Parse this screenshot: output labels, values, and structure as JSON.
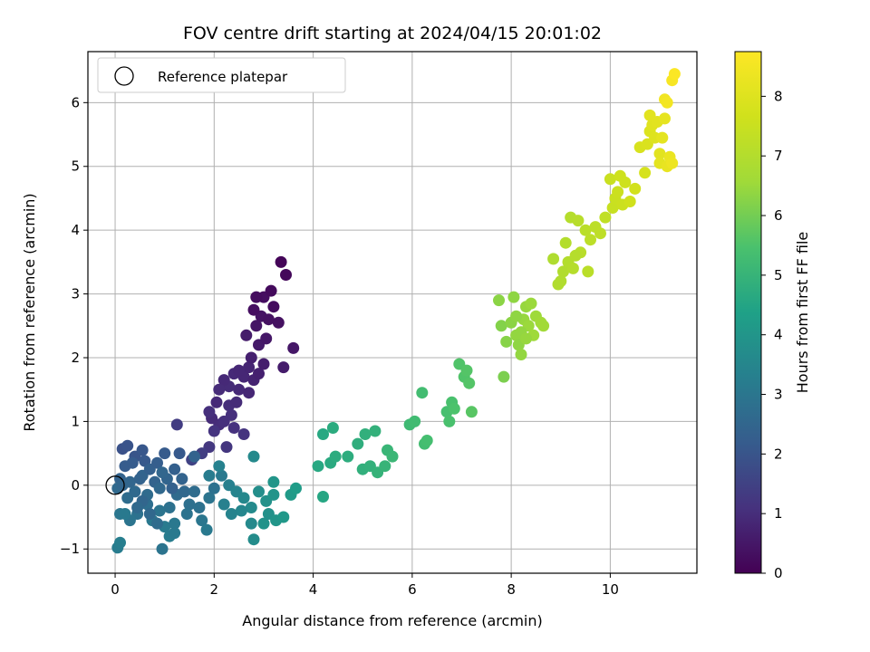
{
  "chart_data": {
    "type": "scatter",
    "title": "FOV centre drift starting at 2024/04/15 20:01:02",
    "xlabel": "Angular distance from reference (arcmin)",
    "ylabel": "Rotation from reference (arcmin)",
    "xlim": [
      -0.55,
      11.75
    ],
    "ylim": [
      -1.38,
      6.8
    ],
    "x_ticks": [
      0,
      2,
      4,
      6,
      8,
      10
    ],
    "y_ticks": [
      -1,
      0,
      1,
      2,
      3,
      4,
      5,
      6
    ],
    "x_tick_labels": [
      "0",
      "2",
      "4",
      "6",
      "8",
      "10"
    ],
    "y_tick_labels": [
      "−1",
      "0",
      "1",
      "2",
      "3",
      "4",
      "5",
      "6"
    ],
    "grid": true,
    "colormap": "viridis",
    "colorbar": {
      "label": "Hours from first FF file",
      "range": [
        0,
        8.75
      ],
      "ticks": [
        0,
        1,
        2,
        3,
        4,
        5,
        6,
        7,
        8
      ],
      "tick_labels": [
        "0",
        "1",
        "2",
        "3",
        "4",
        "5",
        "6",
        "7",
        "8"
      ]
    },
    "legend": {
      "position": "top-left",
      "label": "Reference platepar"
    },
    "reference_point": {
      "x": 0,
      "y": 0
    },
    "series_columns": [
      "x",
      "y",
      "hours"
    ],
    "points": [
      [
        2.1,
        0.95,
        1.0
      ],
      [
        2.2,
        1.0,
        1.05
      ],
      [
        1.95,
        1.05,
        0.95
      ],
      [
        2.3,
        1.25,
        1.0
      ],
      [
        2.05,
        1.3,
        0.9
      ],
      [
        2.5,
        1.5,
        0.9
      ],
      [
        2.3,
        1.55,
        0.95
      ],
      [
        2.6,
        1.7,
        0.85
      ],
      [
        2.4,
        1.75,
        0.9
      ],
      [
        2.7,
        1.85,
        0.8
      ],
      [
        2.5,
        1.8,
        0.85
      ],
      [
        2.8,
        1.65,
        0.75
      ],
      [
        2.9,
        1.75,
        0.7
      ],
      [
        2.75,
        2.0,
        0.7
      ],
      [
        3.0,
        1.9,
        0.65
      ],
      [
        2.65,
        2.35,
        0.6
      ],
      [
        2.9,
        2.2,
        0.55
      ],
      [
        3.05,
        2.3,
        0.5
      ],
      [
        2.85,
        2.5,
        0.45
      ],
      [
        2.95,
        2.65,
        0.4
      ],
      [
        3.1,
        2.6,
        0.35
      ],
      [
        2.8,
        2.75,
        0.3
      ],
      [
        3.2,
        2.8,
        0.25
      ],
      [
        3.0,
        2.95,
        0.3
      ],
      [
        3.15,
        3.05,
        0.2
      ],
      [
        2.85,
        2.95,
        0.25
      ],
      [
        3.3,
        2.55,
        0.35
      ],
      [
        3.35,
        3.5,
        0.1
      ],
      [
        3.45,
        3.3,
        0.15
      ],
      [
        3.4,
        1.85,
        0.6
      ],
      [
        3.6,
        2.15,
        0.5
      ],
      [
        2.2,
        1.65,
        0.9
      ],
      [
        2.7,
        1.45,
        0.85
      ],
      [
        2.45,
        1.3,
        0.95
      ],
      [
        2.1,
        1.5,
        0.95
      ],
      [
        1.9,
        1.15,
        1.05
      ],
      [
        2.4,
        0.9,
        1.1
      ],
      [
        2.6,
        0.8,
        1.15
      ],
      [
        2.25,
        0.6,
        1.2
      ],
      [
        1.9,
        0.6,
        1.25
      ],
      [
        1.75,
        0.5,
        1.4
      ],
      [
        1.55,
        0.4,
        1.5
      ],
      [
        1.25,
        0.95,
        1.35
      ],
      [
        2.0,
        0.85,
        1.15
      ],
      [
        2.35,
        1.1,
        1.05
      ],
      [
        0.15,
        0.57,
        1.9
      ],
      [
        0.25,
        0.62,
        1.95
      ],
      [
        0.4,
        0.45,
        2.0
      ],
      [
        0.55,
        0.55,
        2.05
      ],
      [
        0.6,
        0.38,
        2.1
      ],
      [
        0.2,
        0.3,
        2.2
      ],
      [
        0.1,
        0.1,
        2.4
      ],
      [
        0.3,
        0.05,
        2.5
      ],
      [
        0.05,
        -0.05,
        2.6
      ],
      [
        0.25,
        -0.2,
        2.7
      ],
      [
        0.4,
        -0.1,
        2.6
      ],
      [
        0.55,
        0.15,
        2.45
      ],
      [
        0.7,
        0.25,
        2.3
      ],
      [
        0.8,
        0.05,
        2.4
      ],
      [
        0.9,
        -0.05,
        2.55
      ],
      [
        0.65,
        -0.3,
        2.75
      ],
      [
        0.45,
        -0.45,
        2.85
      ],
      [
        0.3,
        -0.55,
        2.95
      ],
      [
        0.1,
        -0.45,
        3.0
      ],
      [
        0.05,
        -0.98,
        3.2
      ],
      [
        0.1,
        -0.9,
        3.25
      ],
      [
        0.2,
        -0.45,
        3.1
      ],
      [
        0.75,
        -0.55,
        3.05
      ],
      [
        0.9,
        -0.4,
        2.95
      ],
      [
        1.0,
        -0.65,
        3.15
      ],
      [
        1.1,
        -0.8,
        3.2
      ],
      [
        1.2,
        -0.6,
        3.05
      ],
      [
        1.1,
        -0.35,
        2.85
      ],
      [
        1.25,
        -0.15,
        2.65
      ],
      [
        1.05,
        0.1,
        2.45
      ],
      [
        1.2,
        0.25,
        2.3
      ],
      [
        1.35,
        0.1,
        2.4
      ],
      [
        1.0,
        0.5,
        2.15
      ],
      [
        0.85,
        0.35,
        2.25
      ],
      [
        0.5,
        0.1,
        2.4
      ],
      [
        0.35,
        0.35,
        2.2
      ],
      [
        0.15,
        0.0,
        2.5
      ],
      [
        0.65,
        -0.15,
        2.65
      ],
      [
        0.95,
        0.2,
        2.5
      ],
      [
        1.3,
        0.5,
        2.1
      ],
      [
        1.4,
        -0.1,
        2.55
      ],
      [
        1.5,
        -0.3,
        2.8
      ],
      [
        1.6,
        -0.1,
        2.7
      ],
      [
        1.7,
        -0.35,
        2.85
      ],
      [
        1.75,
        -0.55,
        3.0
      ],
      [
        1.85,
        -0.7,
        3.1
      ],
      [
        1.9,
        -0.2,
        2.95
      ],
      [
        2.0,
        -0.05,
        2.85
      ],
      [
        2.15,
        0.15,
        3.1
      ],
      [
        2.3,
        0.0,
        3.3
      ],
      [
        2.45,
        -0.1,
        3.45
      ],
      [
        2.6,
        -0.2,
        3.55
      ],
      [
        2.75,
        -0.35,
        3.65
      ],
      [
        2.9,
        -0.1,
        3.75
      ],
      [
        3.05,
        -0.25,
        3.85
      ],
      [
        3.2,
        -0.15,
        3.95
      ],
      [
        3.1,
        -0.45,
        3.85
      ],
      [
        3.25,
        -0.55,
        4.0
      ],
      [
        3.0,
        -0.6,
        3.9
      ],
      [
        2.8,
        -0.85,
        3.7
      ],
      [
        2.75,
        -0.6,
        3.6
      ],
      [
        2.55,
        -0.4,
        3.5
      ],
      [
        2.35,
        -0.45,
        3.4
      ],
      [
        2.2,
        -0.3,
        3.3
      ],
      [
        1.9,
        0.15,
        3.2
      ],
      [
        2.1,
        0.3,
        3.35
      ],
      [
        2.8,
        0.45,
        3.6
      ],
      [
        3.2,
        0.05,
        4.0
      ],
      [
        3.4,
        -0.5,
        4.1
      ],
      [
        3.55,
        -0.15,
        4.15
      ],
      [
        3.65,
        -0.05,
        4.2
      ],
      [
        0.95,
        -1.0,
        2.95
      ],
      [
        1.2,
        -0.75,
        3.1
      ],
      [
        1.45,
        -0.45,
        2.9
      ],
      [
        1.6,
        0.45,
        2.4
      ],
      [
        0.7,
        -0.45,
        2.55
      ],
      [
        0.55,
        -0.25,
        2.5
      ],
      [
        0.85,
        -0.6,
        2.7
      ],
      [
        1.15,
        -0.05,
        2.35
      ],
      [
        0.45,
        -0.35,
        2.6
      ],
      [
        4.2,
        0.8,
        4.6
      ],
      [
        4.4,
        0.9,
        4.7
      ],
      [
        4.1,
        0.3,
        4.6
      ],
      [
        4.35,
        0.35,
        4.65
      ],
      [
        4.45,
        0.45,
        4.7
      ],
      [
        4.2,
        -0.18,
        4.55
      ],
      [
        4.7,
        0.45,
        4.75
      ],
      [
        4.9,
        0.65,
        4.8
      ],
      [
        5.05,
        0.8,
        4.85
      ],
      [
        5.25,
        0.85,
        4.9
      ],
      [
        5.0,
        0.25,
        4.85
      ],
      [
        5.15,
        0.3,
        4.9
      ],
      [
        5.3,
        0.2,
        4.95
      ],
      [
        5.45,
        0.3,
        5.0
      ],
      [
        5.5,
        0.55,
        5.05
      ],
      [
        5.6,
        0.45,
        5.1
      ],
      [
        5.95,
        0.95,
        5.2
      ],
      [
        6.05,
        1.0,
        5.25
      ],
      [
        6.2,
        1.45,
        5.3
      ],
      [
        6.25,
        0.65,
        5.3
      ],
      [
        6.3,
        0.7,
        5.35
      ],
      [
        6.7,
        1.15,
        5.4
      ],
      [
        6.8,
        1.3,
        5.45
      ],
      [
        6.85,
        1.2,
        5.5
      ],
      [
        6.95,
        1.9,
        5.55
      ],
      [
        7.05,
        1.7,
        5.55
      ],
      [
        7.1,
        1.8,
        5.6
      ],
      [
        7.15,
        1.6,
        5.6
      ],
      [
        7.2,
        1.15,
        5.65
      ],
      [
        6.75,
        1.0,
        5.45
      ],
      [
        7.75,
        2.9,
        6.3
      ],
      [
        7.8,
        2.5,
        6.2
      ],
      [
        7.9,
        2.25,
        6.25
      ],
      [
        7.85,
        1.7,
        6.1
      ],
      [
        8.0,
        2.55,
        6.3
      ],
      [
        8.05,
        2.95,
        6.35
      ],
      [
        8.1,
        2.35,
        6.4
      ],
      [
        8.15,
        2.2,
        6.35
      ],
      [
        8.2,
        2.05,
        6.4
      ],
      [
        8.25,
        2.6,
        6.45
      ],
      [
        8.3,
        2.8,
        6.45
      ],
      [
        8.35,
        2.5,
        6.5
      ],
      [
        8.4,
        2.85,
        6.5
      ],
      [
        8.45,
        2.35,
        6.55
      ],
      [
        8.5,
        2.65,
        6.55
      ],
      [
        8.6,
        2.55,
        6.6
      ],
      [
        8.65,
        2.5,
        6.6
      ],
      [
        8.2,
        2.4,
        6.4
      ],
      [
        8.3,
        2.3,
        6.45
      ],
      [
        8.1,
        2.65,
        6.35
      ],
      [
        8.85,
        3.55,
        6.9
      ],
      [
        8.95,
        3.15,
        6.95
      ],
      [
        9.05,
        3.35,
        6.95
      ],
      [
        9.1,
        3.8,
        7.0
      ],
      [
        9.15,
        3.5,
        7.0
      ],
      [
        9.2,
        4.2,
        7.05
      ],
      [
        9.25,
        3.4,
        7.05
      ],
      [
        9.35,
        4.15,
        7.1
      ],
      [
        9.4,
        3.65,
        7.1
      ],
      [
        9.5,
        4.0,
        7.15
      ],
      [
        9.55,
        3.35,
        7.15
      ],
      [
        9.6,
        3.85,
        7.2
      ],
      [
        9.7,
        4.05,
        7.2
      ],
      [
        9.8,
        3.95,
        7.25
      ],
      [
        9.9,
        4.2,
        7.3
      ],
      [
        9.0,
        3.2,
        6.95
      ],
      [
        9.3,
        3.6,
        7.05
      ],
      [
        10.0,
        4.8,
        7.5
      ],
      [
        10.05,
        4.35,
        7.45
      ],
      [
        10.1,
        4.5,
        7.5
      ],
      [
        10.15,
        4.6,
        7.55
      ],
      [
        10.2,
        4.85,
        7.6
      ],
      [
        10.25,
        4.4,
        7.55
      ],
      [
        10.3,
        4.75,
        7.6
      ],
      [
        10.4,
        4.45,
        7.65
      ],
      [
        10.5,
        4.65,
        7.7
      ],
      [
        10.6,
        5.3,
        7.85
      ],
      [
        10.75,
        5.35,
        7.9
      ],
      [
        10.7,
        4.9,
        7.8
      ],
      [
        10.8,
        5.55,
        7.95
      ],
      [
        10.9,
        5.45,
        8.0
      ],
      [
        10.85,
        5.65,
        8.05
      ],
      [
        10.8,
        5.8,
        8.1
      ],
      [
        10.95,
        5.7,
        8.1
      ],
      [
        11.0,
        5.2,
        8.1
      ],
      [
        11.05,
        5.45,
        8.15
      ],
      [
        11.1,
        5.75,
        8.2
      ],
      [
        11.0,
        5.05,
        8.15
      ],
      [
        11.15,
        5.0,
        8.25
      ],
      [
        11.2,
        5.15,
        8.3
      ],
      [
        11.1,
        6.05,
        8.45
      ],
      [
        11.15,
        6.0,
        8.5
      ],
      [
        11.25,
        6.35,
        8.6
      ],
      [
        11.3,
        6.45,
        8.7
      ],
      [
        11.25,
        5.05,
        8.35
      ]
    ]
  }
}
